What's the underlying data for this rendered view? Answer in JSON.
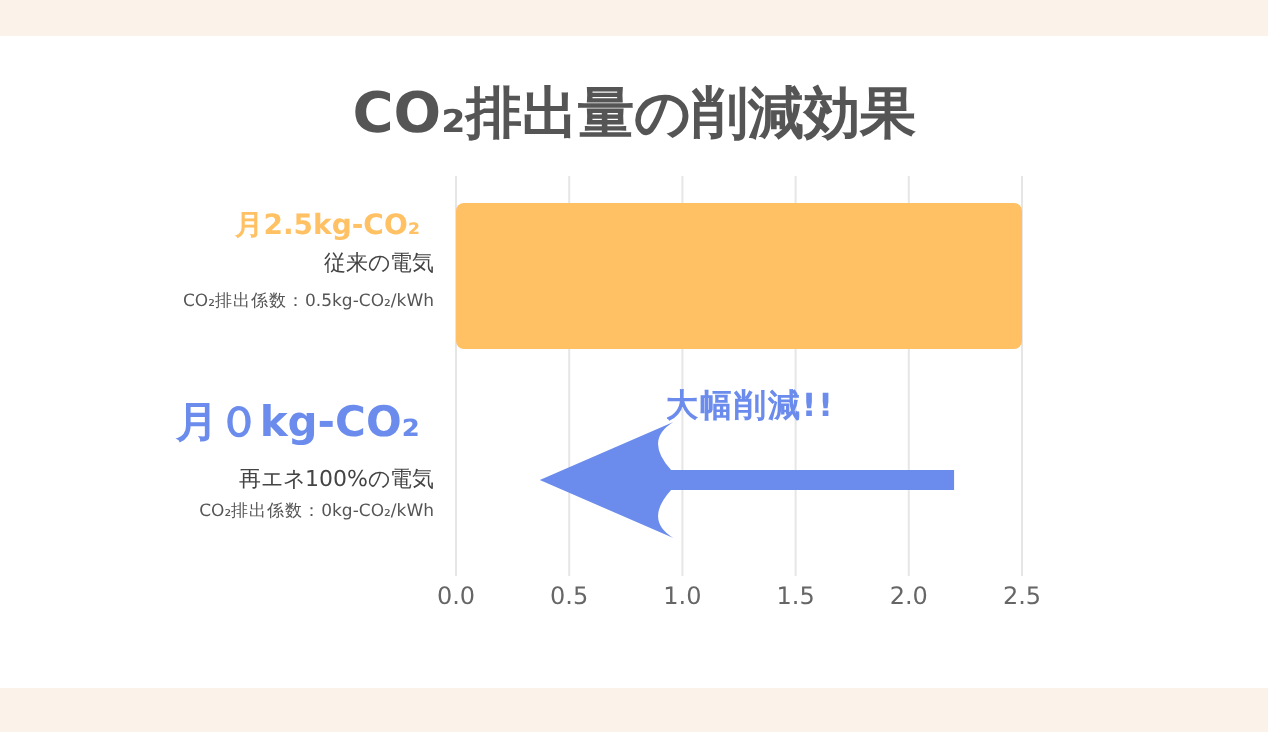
{
  "chart_data": {
    "type": "bar",
    "orientation": "horizontal",
    "title": "CO₂排出量の削減効果",
    "categories": [
      "従来の電気",
      "再エネ100%の電気"
    ],
    "values": [
      2.5,
      0
    ],
    "colors": [
      "#ffc163",
      "#6b8cec"
    ],
    "value_labels": [
      "月2.5kg-CO₂",
      "月０kg-CO₂"
    ],
    "xlim": [
      0,
      2.5
    ],
    "xticks": [
      {
        "value": 0,
        "label": "0.0"
      },
      {
        "value": 0.5,
        "label": "0.5"
      },
      {
        "value": 1,
        "label": "1.0"
      },
      {
        "value": 1.5,
        "label": "1.5"
      },
      {
        "value": 2,
        "label": "2.0"
      },
      {
        "value": 2.5,
        "label": "2.5"
      }
    ],
    "grid": "x",
    "annotations": [
      "CO₂排出係数：0.5kg-CO₂/kWh",
      "CO₂排出係数：0kg-CO₂/kWh",
      "大幅削減!!"
    ]
  }
}
